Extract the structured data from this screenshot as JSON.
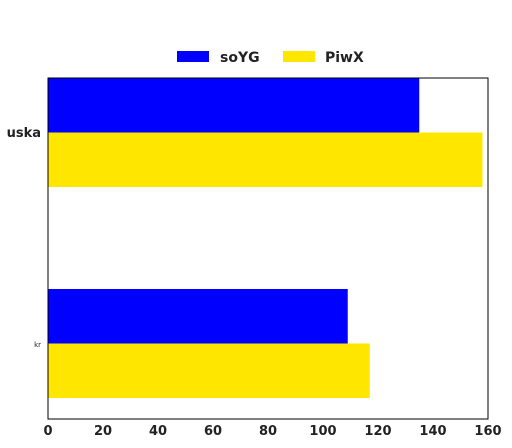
{
  "chart_data": {
    "type": "bar",
    "orientation": "horizontal",
    "categories": [
      "uska",
      "kr"
    ],
    "series": [
      {
        "name": "soYG",
        "values": [
          135,
          109
        ],
        "color": "#0000ff"
      },
      {
        "name": "PiwX",
        "values": [
          158,
          117
        ],
        "color": "#ffe600"
      }
    ],
    "xlim": [
      0,
      160
    ],
    "xticks": [
      "0",
      "20",
      "40",
      "60",
      "80",
      "100",
      "120",
      "140",
      "160"
    ],
    "grid": false,
    "legend_position": "top-center"
  }
}
